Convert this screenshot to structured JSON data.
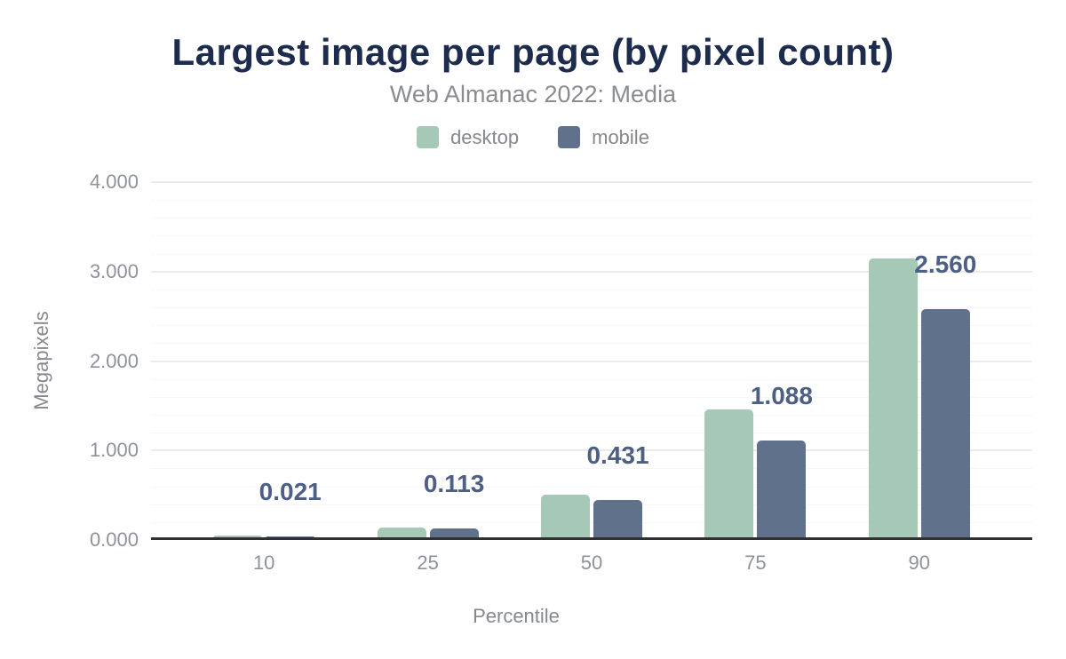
{
  "header": {
    "title": "Largest image per page (by pixel count)",
    "subtitle": "Web Almanac 2022: Media"
  },
  "chart_data": {
    "type": "bar",
    "title": "Largest image per page (by pixel count)",
    "subtitle": "Web Almanac 2022: Media",
    "categories": [
      "10",
      "25",
      "50",
      "75",
      "90"
    ],
    "series": [
      {
        "name": "desktop",
        "color": "#a6c9b7",
        "values": [
          0.03,
          0.12,
          0.49,
          1.44,
          3.13
        ]
      },
      {
        "name": "mobile",
        "color": "#60718c",
        "values": [
          0.021,
          0.113,
          0.431,
          1.088,
          2.56
        ],
        "data_labels": [
          "0.021",
          "0.113",
          "0.431",
          "1.088",
          "2.560"
        ]
      }
    ],
    "xlabel": "Percentile",
    "ylabel": "Megapixels",
    "ylim": [
      0,
      4
    ],
    "yticks": [
      {
        "value": 0,
        "label": "0.000"
      },
      {
        "value": 1,
        "label": "1.000"
      },
      {
        "value": 2,
        "label": "2.000"
      },
      {
        "value": 3,
        "label": "3.000"
      },
      {
        "value": 4,
        "label": "4.000"
      }
    ],
    "grid": {
      "shown": true,
      "major_step": 1,
      "minor_step": 0.2
    },
    "legend_position": "top",
    "labeled_series": "mobile"
  },
  "colors": {
    "title": "#1d2b4c",
    "subtitle": "#8a8c91",
    "tick_label": "#8d929b",
    "data_label": "#4d5f84",
    "axis_line": "#303030",
    "grid_major": "#ebebeb",
    "grid_minor": "#f6f6f6",
    "background": "#ffffff",
    "desktop_bar": "#a6c9b7",
    "mobile_bar": "#60718c"
  }
}
